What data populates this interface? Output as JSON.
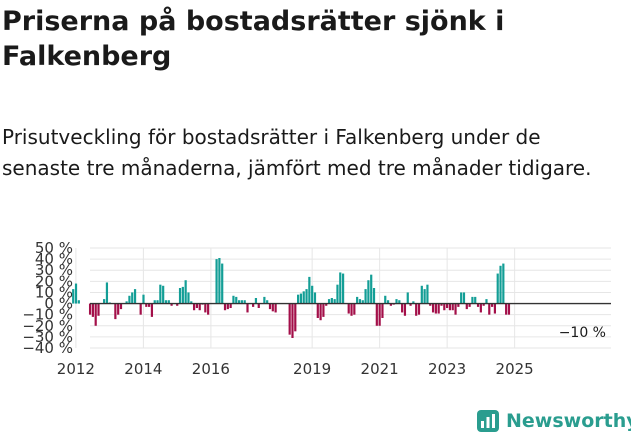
{
  "title": "Priserna på bostadsrätter sjönk i Falkenberg",
  "subtitle": "Prisutveckling för bostadsrätter i Falkenberg under de senaste tre månaderna, jämfört med tre månader tidigare.",
  "brand": "Newsworthy",
  "colors": {
    "positive": "#139e96",
    "negative": "#a30f49",
    "zero_line": "#333333",
    "grid": "#e6e6e6",
    "brand": "#2a9d8f"
  },
  "chart_data": {
    "type": "bar",
    "ylim": [
      -40,
      50
    ],
    "yticks": [
      50,
      40,
      30,
      20,
      10,
      0,
      -10,
      -20,
      -30,
      -40
    ],
    "ytick_labels": [
      "50 %",
      "40 %",
      "30 %",
      "20 %",
      "10 %",
      "0 %",
      "−10 %",
      "−20 %",
      "−30 %",
      "−40 %"
    ],
    "xticks": [
      2012,
      2014,
      2016,
      2019,
      2021,
      2023,
      2025
    ],
    "x_start": 2011.92,
    "x_step": 0.0833,
    "last_value_label": "−10 %",
    "values": [
      13,
      18,
      3,
      null,
      null,
      null,
      -10,
      -12,
      -20,
      -11,
      null,
      4,
      19,
      1,
      null,
      -14,
      -10,
      -5,
      null,
      2,
      7,
      10,
      13,
      null,
      -10,
      8,
      -3,
      -3,
      -12,
      3,
      3,
      17,
      16,
      3,
      3,
      -2,
      null,
      -2,
      14,
      15,
      21,
      10,
      2,
      -6,
      -4,
      -6,
      -1,
      -8,
      -10,
      null,
      null,
      40,
      41,
      36,
      -6,
      -5,
      -4,
      7,
      6,
      3,
      3,
      3,
      -8,
      null,
      -3,
      5,
      -4,
      null,
      6,
      3,
      -5,
      -7,
      -8,
      null,
      null,
      null,
      null,
      -28,
      -31,
      -25,
      8,
      9,
      11,
      13,
      24,
      16,
      10,
      -13,
      -15,
      -12,
      -2,
      4,
      5,
      4,
      17,
      28,
      27,
      null,
      -9,
      -11,
      -10,
      6,
      4,
      3,
      13,
      21,
      26,
      14,
      -20,
      -20,
      -13,
      7,
      3,
      -2,
      -1,
      4,
      3,
      -8,
      -11,
      10,
      -2,
      2,
      -11,
      -10,
      16,
      13,
      17,
      -2,
      -8,
      -9,
      -9,
      -2,
      -6,
      -4,
      -6,
      -6,
      -10,
      -3,
      10,
      10,
      -5,
      -3,
      6,
      6,
      -3,
      -8,
      -2,
      4,
      -10,
      -3,
      -9,
      27,
      34,
      36,
      -10,
      -10
    ]
  }
}
